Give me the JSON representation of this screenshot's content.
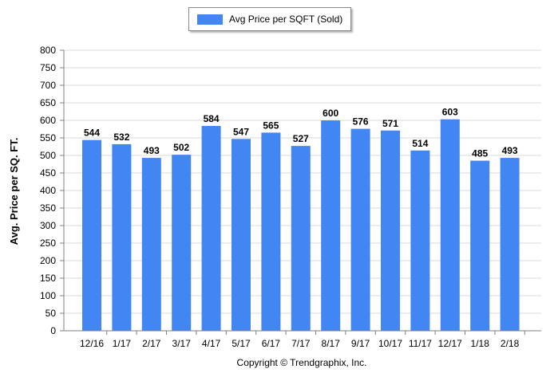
{
  "chart_data": {
    "type": "bar",
    "categories": [
      "12/16",
      "1/17",
      "2/17",
      "3/17",
      "4/17",
      "5/17",
      "6/17",
      "7/17",
      "8/17",
      "9/17",
      "10/17",
      "11/17",
      "12/17",
      "1/18",
      "2/18"
    ],
    "series": [
      {
        "name": "Avg Price per SQFT (Sold)",
        "values": [
          544,
          532,
          493,
          502,
          584,
          547,
          565,
          527,
          600,
          576,
          571,
          514,
          603,
          485,
          493
        ],
        "color": "#4286f4"
      }
    ],
    "ylabel": "Avg. Price per SQ. FT.",
    "xlabel": "",
    "ylim": [
      0,
      800
    ],
    "yticks": [
      0,
      50,
      100,
      150,
      200,
      250,
      300,
      350,
      400,
      450,
      500,
      550,
      600,
      650,
      700,
      750,
      800
    ],
    "grid": true,
    "legend": "top-center",
    "data_labels": true
  },
  "legend_label": "Avg Price per SQFT (Sold)",
  "footer": {
    "copyright": "Copyright © Trendgraphix, Inc."
  },
  "colors": {
    "bar": "#4286f4",
    "grid": "#d9d9d9",
    "axis": "#808080"
  }
}
